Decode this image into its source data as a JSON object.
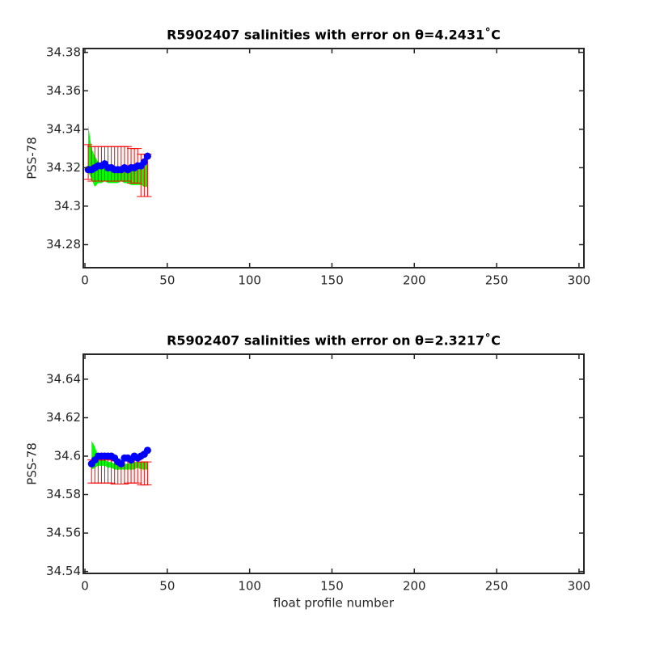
{
  "chart_data": [
    {
      "type": "errorbar-profile",
      "title": "R5902407 salinities with error on θ=4.2431˚C",
      "ylabel": "PSS-78",
      "x": [
        2,
        4,
        6,
        8,
        10,
        12,
        14,
        16,
        18,
        20,
        22,
        24,
        26,
        28,
        30,
        32,
        34,
        36,
        38
      ],
      "xlim": [
        -1,
        303
      ],
      "xticks": [
        0,
        50,
        100,
        150,
        200,
        250,
        300
      ],
      "ylim": [
        34.268,
        34.382
      ],
      "yticks": [
        34.28,
        34.3,
        34.32,
        34.34,
        34.36,
        34.38
      ],
      "series": [
        {
          "style": "band",
          "color": "#00ff00",
          "upper": [
            34.342,
            34.33,
            34.326,
            34.323,
            34.322,
            34.321,
            34.32,
            34.32,
            34.32,
            34.32,
            34.32,
            34.32,
            34.32,
            34.32,
            34.32,
            34.32,
            34.32,
            34.322,
            34.322
          ],
          "lower": [
            34.318,
            34.314,
            34.31,
            34.312,
            34.312,
            34.313,
            34.312,
            34.312,
            34.312,
            34.312,
            34.313,
            34.312,
            34.312,
            34.311,
            34.311,
            34.311,
            34.311,
            34.31,
            34.31
          ]
        },
        {
          "style": "errorbar",
          "color": "#ff0000",
          "values": [
            34.323,
            34.322,
            34.322,
            34.322,
            34.322,
            34.322,
            34.322,
            34.322,
            34.322,
            34.322,
            34.322,
            34.322,
            34.322,
            34.321,
            34.321,
            34.321,
            34.316,
            34.316,
            34.316
          ],
          "errors": [
            0.009,
            0.009,
            0.009,
            0.009,
            0.009,
            0.009,
            0.009,
            0.009,
            0.009,
            0.009,
            0.009,
            0.009,
            0.009,
            0.009,
            0.009,
            0.009,
            0.011,
            0.011,
            0.011
          ]
        },
        {
          "style": "dots",
          "color": "#0000ff",
          "values": [
            34.319,
            34.319,
            34.32,
            34.321,
            34.321,
            34.322,
            34.32,
            34.32,
            34.319,
            34.319,
            34.319,
            34.32,
            34.319,
            34.32,
            34.32,
            34.321,
            34.321,
            34.323,
            34.326
          ]
        }
      ]
    },
    {
      "type": "errorbar-profile",
      "title": "R5902407 salinities with error on θ=2.3217˚C",
      "ylabel": "PSS-78",
      "xlabel": "float profile number",
      "x": [
        4,
        6,
        8,
        10,
        12,
        14,
        16,
        18,
        20,
        22,
        24,
        26,
        28,
        30,
        32,
        34,
        36,
        38
      ],
      "xlim": [
        -1,
        303
      ],
      "xticks": [
        0,
        50,
        100,
        150,
        200,
        250,
        300
      ],
      "ylim": [
        34.539,
        34.653
      ],
      "yticks": [
        34.54,
        34.56,
        34.58,
        34.6,
        34.62,
        34.64
      ],
      "series": [
        {
          "style": "band",
          "color": "#00ff00",
          "upper": [
            34.608,
            34.605,
            34.6,
            34.598,
            34.598,
            34.597,
            34.597,
            34.596,
            34.595,
            34.594,
            34.596,
            34.596,
            34.597,
            34.597,
            34.597,
            34.597,
            34.597,
            34.597
          ],
          "lower": [
            34.593,
            34.594,
            34.595,
            34.595,
            34.595,
            34.594,
            34.594,
            34.593,
            34.593,
            34.593,
            34.593,
            34.593,
            34.593,
            34.593,
            34.594,
            34.593,
            34.593,
            34.593
          ]
        },
        {
          "style": "errorbar",
          "color": "#ff0000",
          "values": [
            34.592,
            34.592,
            34.592,
            34.592,
            34.592,
            34.592,
            34.592,
            34.5915,
            34.5915,
            34.5915,
            34.5915,
            34.592,
            34.592,
            34.592,
            34.592,
            34.591,
            34.591,
            34.591
          ],
          "errors": [
            0.006,
            0.006,
            0.006,
            0.006,
            0.006,
            0.006,
            0.006,
            0.006,
            0.006,
            0.006,
            0.006,
            0.006,
            0.006,
            0.006,
            0.006,
            0.006,
            0.006,
            0.006
          ]
        },
        {
          "style": "dots",
          "color": "#0000ff",
          "values": [
            34.596,
            34.598,
            34.6,
            34.6,
            34.6,
            34.6,
            34.6,
            34.599,
            34.597,
            34.596,
            34.599,
            34.599,
            34.598,
            34.6,
            34.599,
            34.6,
            34.601,
            34.603
          ]
        }
      ]
    }
  ]
}
